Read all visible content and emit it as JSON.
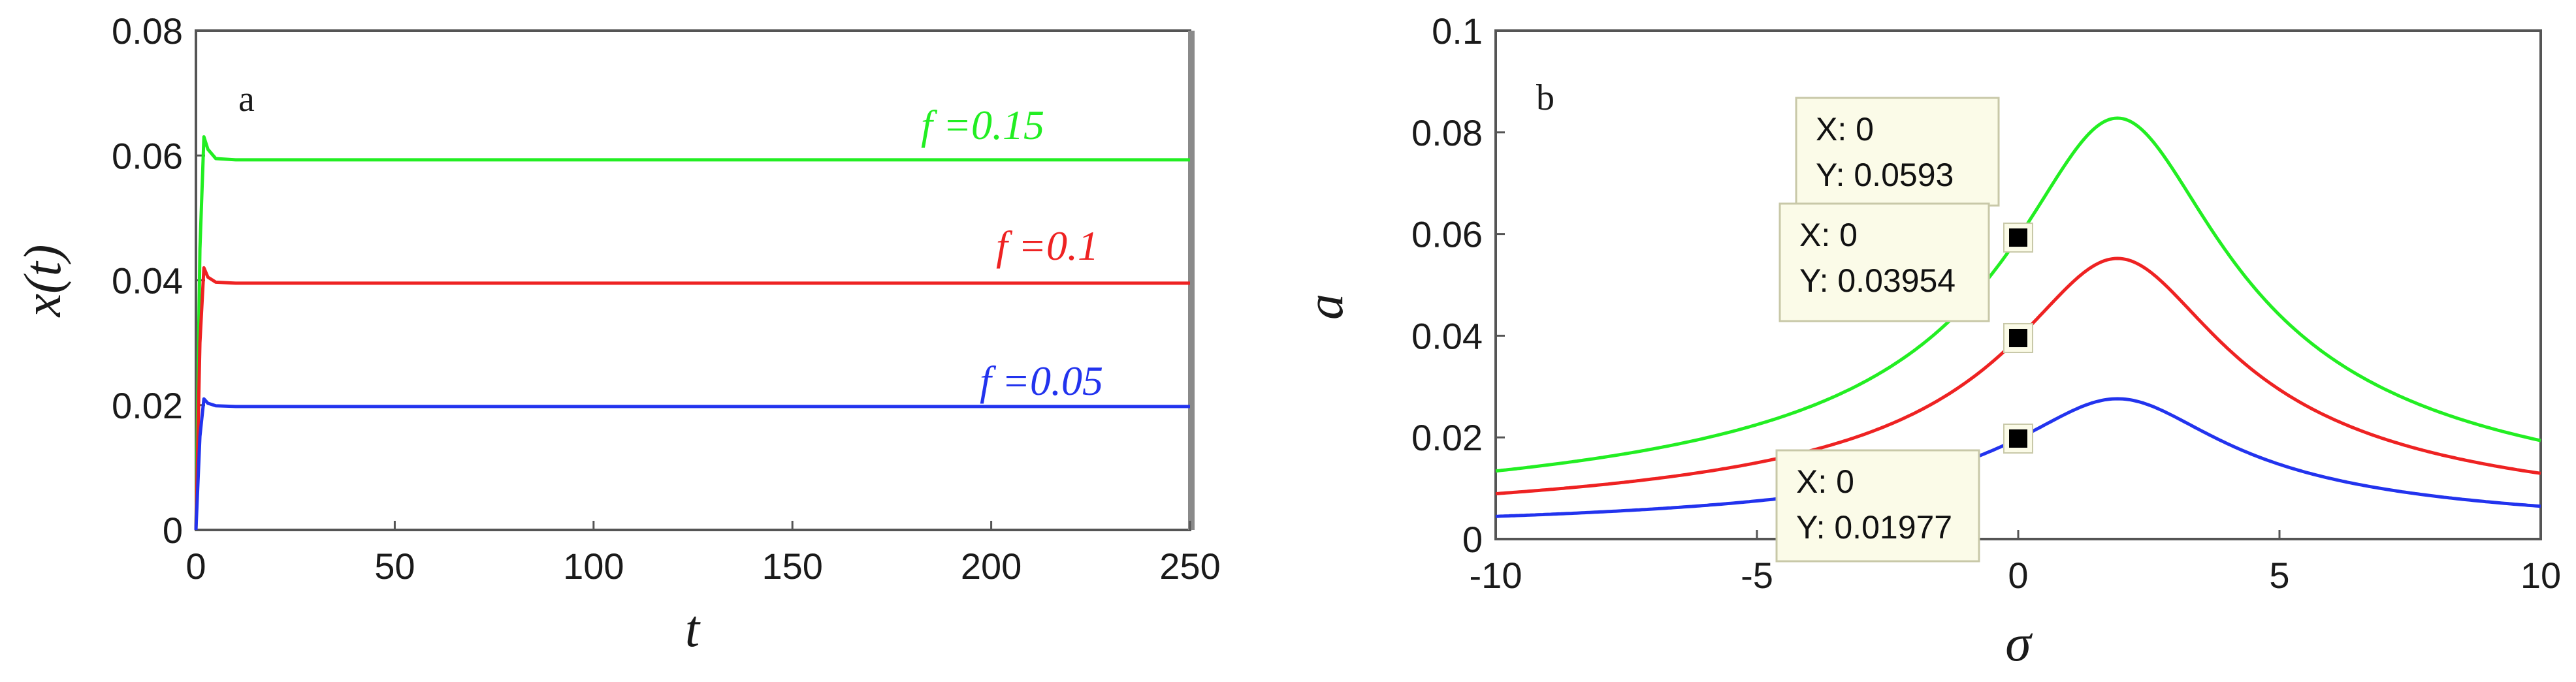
{
  "chart_data": [
    {
      "type": "line",
      "panel_label": "a",
      "xlabel": "t",
      "ylabel": "x(t)",
      "xlim": [
        0,
        250
      ],
      "ylim": [
        0,
        0.08
      ],
      "x_ticks": [
        "0",
        "50",
        "100",
        "150",
        "200",
        "250"
      ],
      "y_ticks": [
        "0",
        "0.02",
        "0.04",
        "0.06",
        "0.08"
      ],
      "grid": false,
      "series": [
        {
          "name": "f =0.15",
          "color": "#22ee22",
          "steady": 0.0593,
          "peak": 0.0635,
          "values_x": [
            0,
            1,
            2,
            3,
            5,
            10,
            250
          ],
          "values_y": [
            0,
            0.045,
            0.063,
            0.061,
            0.0595,
            0.0593,
            0.0593
          ]
        },
        {
          "name": "f =0.1",
          "color": "#ee2222",
          "steady": 0.03954,
          "peak": 0.0423,
          "values_x": [
            0,
            1,
            2,
            3,
            5,
            10,
            250
          ],
          "values_y": [
            0,
            0.03,
            0.042,
            0.0405,
            0.0397,
            0.03954,
            0.03954
          ]
        },
        {
          "name": "f =0.05",
          "color": "#2233ee",
          "steady": 0.01977,
          "peak": 0.0212,
          "values_x": [
            0,
            1,
            2,
            3,
            5,
            10,
            250
          ],
          "values_y": [
            0,
            0.015,
            0.021,
            0.0203,
            0.0199,
            0.01977,
            0.01977
          ]
        }
      ]
    },
    {
      "type": "line",
      "panel_label": "b",
      "xlabel": "σ",
      "ylabel": "a",
      "xlim": [
        -10,
        10
      ],
      "ylim": [
        0,
        0.1
      ],
      "x_ticks": [
        "-10",
        "-5",
        "0",
        "5",
        "10"
      ],
      "y_ticks": [
        "0",
        "0.02",
        "0.04",
        "0.06",
        "0.08",
        "0.1"
      ],
      "grid": false,
      "series": [
        {
          "color": "#22ee22",
          "peak_x": 1.9,
          "peak_y": 0.0828,
          "at_zero": 0.0593
        },
        {
          "color": "#ee2222",
          "peak_x": 1.9,
          "peak_y": 0.0552,
          "at_zero": 0.03954
        },
        {
          "color": "#2233ee",
          "peak_x": 1.9,
          "peak_y": 0.0276,
          "at_zero": 0.01977
        }
      ],
      "datatips": [
        {
          "x": 0,
          "y": 0.0593,
          "line1": "X: 0",
          "line2": "Y: 0.0593"
        },
        {
          "x": 0,
          "y": 0.03954,
          "line1": "X: 0",
          "line2": "Y: 0.03954"
        },
        {
          "x": 0,
          "y": 0.01977,
          "line1": "X: 0",
          "line2": "Y: 0.01977"
        }
      ]
    }
  ]
}
